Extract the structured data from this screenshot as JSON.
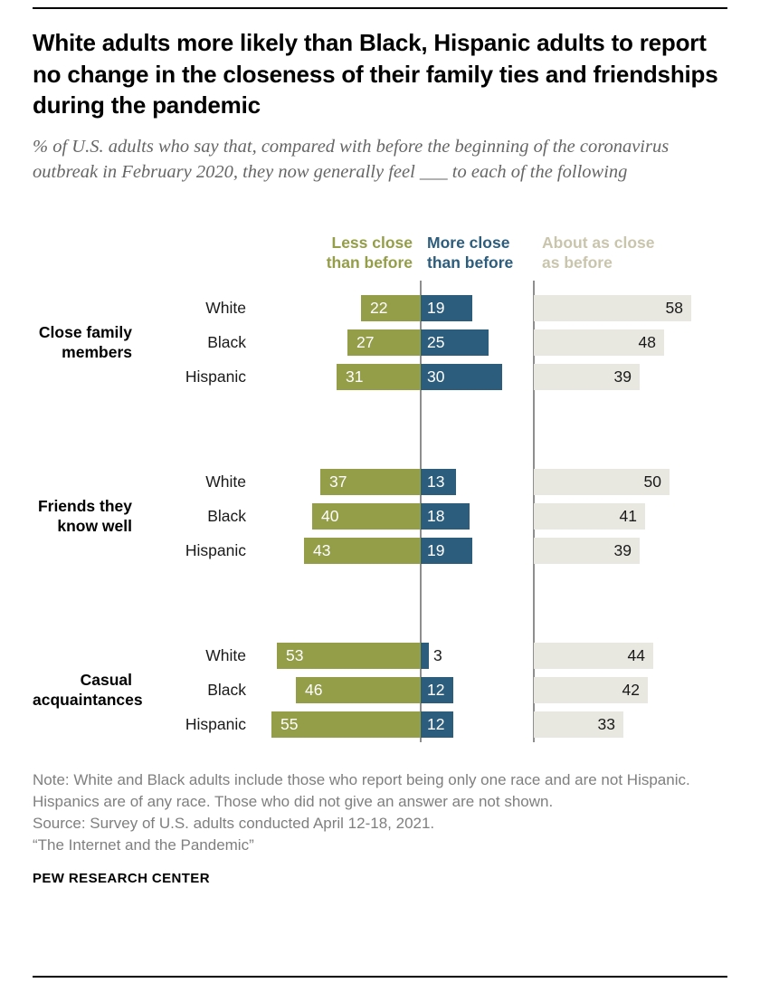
{
  "header": {
    "title": "White adults more likely than Black, Hispanic adults to report no change in the closeness of their family ties and friendships during the pandemic",
    "subtitle": "% of U.S. adults who say that, compared with before the beginning of the coronavirus outbreak in February 2020, they now generally feel ___ to each of the following"
  },
  "chart_data": {
    "type": "bar",
    "orientation": "horizontal",
    "unit": "%",
    "title": "White adults more likely than Black, Hispanic adults to report no change in the closeness of their family ties and friendships during the pandemic",
    "series_headers": [
      {
        "label": "Less close\nthan before",
        "color": "#949d48"
      },
      {
        "label": "More close\nthan before",
        "color": "#2d5d7c"
      },
      {
        "label": "About as close\nas before",
        "color": "#c9c5ad"
      }
    ],
    "colors": {
      "less": "#949d48",
      "more": "#2d5d7c",
      "same": "#e9e8e0"
    },
    "xlim": [
      0,
      60
    ],
    "grid": false,
    "groups": [
      {
        "label": "Close family\nmembers",
        "rows": [
          {
            "category": "White",
            "less": 22,
            "more": 19,
            "same": 58
          },
          {
            "category": "Black",
            "less": 27,
            "more": 25,
            "same": 48
          },
          {
            "category": "Hispanic",
            "less": 31,
            "more": 30,
            "same": 39
          }
        ]
      },
      {
        "label": "Friends they\nknow well",
        "rows": [
          {
            "category": "White",
            "less": 37,
            "more": 13,
            "same": 50
          },
          {
            "category": "Black",
            "less": 40,
            "more": 18,
            "same": 41
          },
          {
            "category": "Hispanic",
            "less": 43,
            "more": 19,
            "same": 39
          }
        ]
      },
      {
        "label": "Casual\nacquaintances",
        "rows": [
          {
            "category": "White",
            "less": 53,
            "more": 3,
            "same": 44
          },
          {
            "category": "Black",
            "less": 46,
            "more": 12,
            "same": 42
          },
          {
            "category": "Hispanic",
            "less": 55,
            "more": 12,
            "same": 33
          }
        ]
      }
    ]
  },
  "footer": {
    "note": "Note: White and Black adults include those who report being only one race and are not Hispanic. Hispanics are of any race. Those who did not give an answer are not shown.",
    "source": "Source: Survey of U.S. adults conducted April 12-18, 2021.",
    "quote": "“The Internet and the Pandemic”",
    "brand": "PEW RESEARCH CENTER"
  }
}
